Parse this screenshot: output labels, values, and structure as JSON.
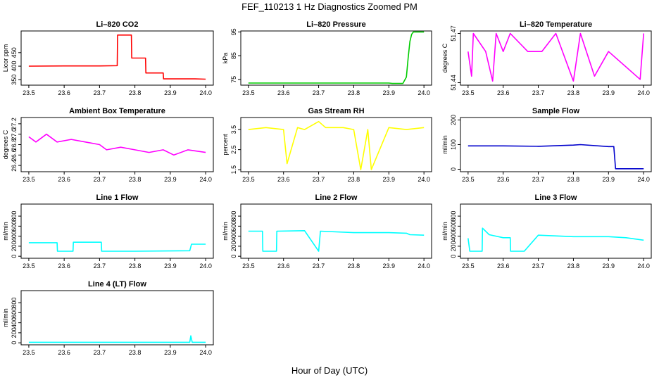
{
  "figure": {
    "title": "FEF_110213  1 Hz Diagnostics Zoomed PM",
    "xlabel": "Hour of Day (UTC)"
  },
  "chart_data": [
    {
      "type": "line",
      "title": "Li–820 CO2",
      "ylabel": "Licor ppm",
      "color": "#ff0000",
      "xlim": [
        23.5,
        24.0
      ],
      "ylim": [
        330,
        530
      ],
      "xticks": [
        "23.5",
        "23.6",
        "23.7",
        "23.8",
        "23.9",
        "24.0"
      ],
      "yticks": [
        "350",
        "400",
        "450"
      ],
      "x": [
        23.5,
        23.6,
        23.7,
        23.75,
        23.751,
        23.79,
        23.791,
        23.83,
        23.831,
        23.88,
        23.881,
        23.97,
        24.0
      ],
      "y": [
        400,
        401,
        401,
        402,
        515,
        515,
        430,
        430,
        375,
        375,
        353,
        353,
        352
      ]
    },
    {
      "type": "line",
      "title": "Li–820 Pressure",
      "ylabel": "kPa",
      "color": "#00cc00",
      "xlim": [
        23.5,
        24.0
      ],
      "ylim": [
        72.6,
        95.4
      ],
      "xticks": [
        "23.5",
        "23.6",
        "23.7",
        "23.8",
        "23.9",
        "24.0"
      ],
      "yticks": [
        "75",
        "85",
        "95"
      ],
      "x": [
        23.5,
        23.9,
        23.91,
        23.94,
        23.95,
        23.955,
        23.96,
        23.965,
        23.97,
        24.0
      ],
      "y": [
        73.5,
        73.5,
        73.3,
        73.3,
        76,
        84,
        91,
        94,
        95,
        95
      ]
    },
    {
      "type": "line",
      "title": "Li–820 Temperature",
      "ylabel": "degrees C",
      "color": "#ff00ff",
      "xlim": [
        23.5,
        24.0
      ],
      "ylim": [
        51.4385,
        51.4715
      ],
      "xticks": [
        "23.5",
        "23.6",
        "23.7",
        "23.8",
        "23.9",
        "24.0"
      ],
      "yticks": [
        "51.44",
        "51.47"
      ],
      "x": [
        23.5,
        23.51,
        23.515,
        23.55,
        23.57,
        23.58,
        23.6,
        23.62,
        23.67,
        23.71,
        23.75,
        23.8,
        23.82,
        23.86,
        23.9,
        23.99,
        24.0
      ],
      "y": [
        51.459,
        51.444,
        51.47,
        51.459,
        51.441,
        51.47,
        51.459,
        51.47,
        51.459,
        51.459,
        51.47,
        51.441,
        51.47,
        51.444,
        51.459,
        51.442,
        51.47
      ]
    },
    {
      "type": "line",
      "title": "Ambient Box Temperature",
      "ylabel": "degrees C",
      "color": "#ff00ff",
      "xlim": [
        23.5,
        24.0
      ],
      "ylim": [
        26.28,
        27.32
      ],
      "xticks": [
        "23.5",
        "23.6",
        "23.7",
        "23.8",
        "23.9",
        "24.0"
      ],
      "yticks": [
        "26.4",
        "26.6",
        "26.8",
        "27.0",
        "27.2"
      ],
      "x": [
        23.5,
        23.52,
        23.55,
        23.58,
        23.62,
        23.66,
        23.7,
        23.72,
        23.76,
        23.8,
        23.84,
        23.88,
        23.91,
        23.95,
        24.0
      ],
      "y": [
        26.95,
        26.85,
        27.0,
        26.85,
        26.9,
        26.85,
        26.8,
        26.7,
        26.75,
        26.7,
        26.65,
        26.7,
        26.6,
        26.7,
        26.65
      ]
    },
    {
      "type": "line",
      "title": "Gas Stream RH",
      "ylabel": "percent",
      "color": "#ffff00",
      "xlim": [
        23.5,
        24.0
      ],
      "ylim": [
        1.4,
        4.1
      ],
      "xticks": [
        "23.5",
        "23.6",
        "23.7",
        "23.8",
        "23.9",
        "24.0"
      ],
      "yticks": [
        "1.5",
        "2.5",
        "3.5"
      ],
      "x": [
        23.5,
        23.55,
        23.6,
        23.61,
        23.64,
        23.66,
        23.7,
        23.72,
        23.77,
        23.8,
        23.82,
        23.84,
        23.85,
        23.9,
        23.95,
        24.0
      ],
      "y": [
        3.5,
        3.6,
        3.5,
        1.8,
        3.6,
        3.5,
        3.9,
        3.6,
        3.6,
        3.5,
        1.5,
        3.5,
        1.5,
        3.6,
        3.5,
        3.6
      ]
    },
    {
      "type": "line",
      "title": "Sample Flow",
      "ylabel": "ml/min",
      "color": "#0000cc",
      "xlim": [
        23.5,
        24.0
      ],
      "ylim": [
        -10,
        210
      ],
      "xticks": [
        "23.5",
        "23.6",
        "23.7",
        "23.8",
        "23.9",
        "24.0"
      ],
      "yticks": [
        "0",
        "100",
        "200"
      ],
      "x": [
        23.5,
        23.6,
        23.7,
        23.8,
        23.82,
        23.9,
        23.915,
        23.92,
        24.0
      ],
      "y": [
        95,
        95,
        93,
        98,
        100,
        92,
        92,
        2,
        2
      ]
    },
    {
      "type": "line",
      "title": "Line 1 Flow",
      "ylabel": "ml/min",
      "color": "#00ffff",
      "xlim": [
        23.5,
        24.0
      ],
      "ylim": [
        -40,
        1040
      ],
      "xticks": [
        "23.5",
        "23.6",
        "23.7",
        "23.8",
        "23.9",
        "24.0"
      ],
      "yticks": [
        "0",
        "200",
        "400",
        "600",
        "800"
      ],
      "x": [
        23.5,
        23.58,
        23.581,
        23.625,
        23.626,
        23.705,
        23.706,
        23.8,
        23.955,
        23.96,
        24.0
      ],
      "y": [
        270,
        270,
        100,
        100,
        280,
        280,
        100,
        100,
        110,
        240,
        240
      ]
    },
    {
      "type": "line",
      "title": "Line 2 Flow",
      "ylabel": "ml/min",
      "color": "#00ffff",
      "xlim": [
        23.5,
        24.0
      ],
      "ylim": [
        -40,
        1040
      ],
      "xticks": [
        "23.5",
        "23.6",
        "23.7",
        "23.8",
        "23.9",
        "24.0"
      ],
      "yticks": [
        "0",
        "200",
        "400",
        "600",
        "800"
      ],
      "x": [
        23.5,
        23.54,
        23.541,
        23.58,
        23.581,
        23.66,
        23.7,
        23.705,
        23.8,
        23.9,
        23.95,
        23.96,
        24.0
      ],
      "y": [
        500,
        500,
        100,
        100,
        500,
        510,
        100,
        500,
        470,
        470,
        460,
        430,
        420
      ]
    },
    {
      "type": "line",
      "title": "Line 3 Flow",
      "ylabel": "ml/min",
      "color": "#00ffff",
      "xlim": [
        23.5,
        24.0
      ],
      "ylim": [
        -40,
        1040
      ],
      "xticks": [
        "23.5",
        "23.6",
        "23.7",
        "23.8",
        "23.9",
        "24.0"
      ],
      "yticks": [
        "0",
        "200",
        "400",
        "600",
        "800"
      ],
      "x": [
        23.5,
        23.505,
        23.54,
        23.541,
        23.56,
        23.6,
        23.62,
        23.621,
        23.66,
        23.7,
        23.8,
        23.9,
        23.95,
        24.0
      ],
      "y": [
        360,
        100,
        100,
        560,
        430,
        370,
        370,
        100,
        100,
        420,
        390,
        390,
        370,
        320
      ]
    },
    {
      "type": "line",
      "title": "Line 4 (LT) Flow",
      "ylabel": "ml/min",
      "color": "#00ffff",
      "xlim": [
        23.5,
        24.0
      ],
      "ylim": [
        -40,
        1040
      ],
      "xticks": [
        "23.5",
        "23.6",
        "23.7",
        "23.8",
        "23.9",
        "24.0"
      ],
      "yticks": [
        "0",
        "200",
        "400",
        "600",
        "800"
      ],
      "x": [
        23.5,
        23.6,
        23.7,
        23.8,
        23.9,
        23.955,
        23.958,
        23.962,
        24.0
      ],
      "y": [
        10,
        10,
        10,
        10,
        10,
        10,
        140,
        10,
        10
      ]
    }
  ]
}
